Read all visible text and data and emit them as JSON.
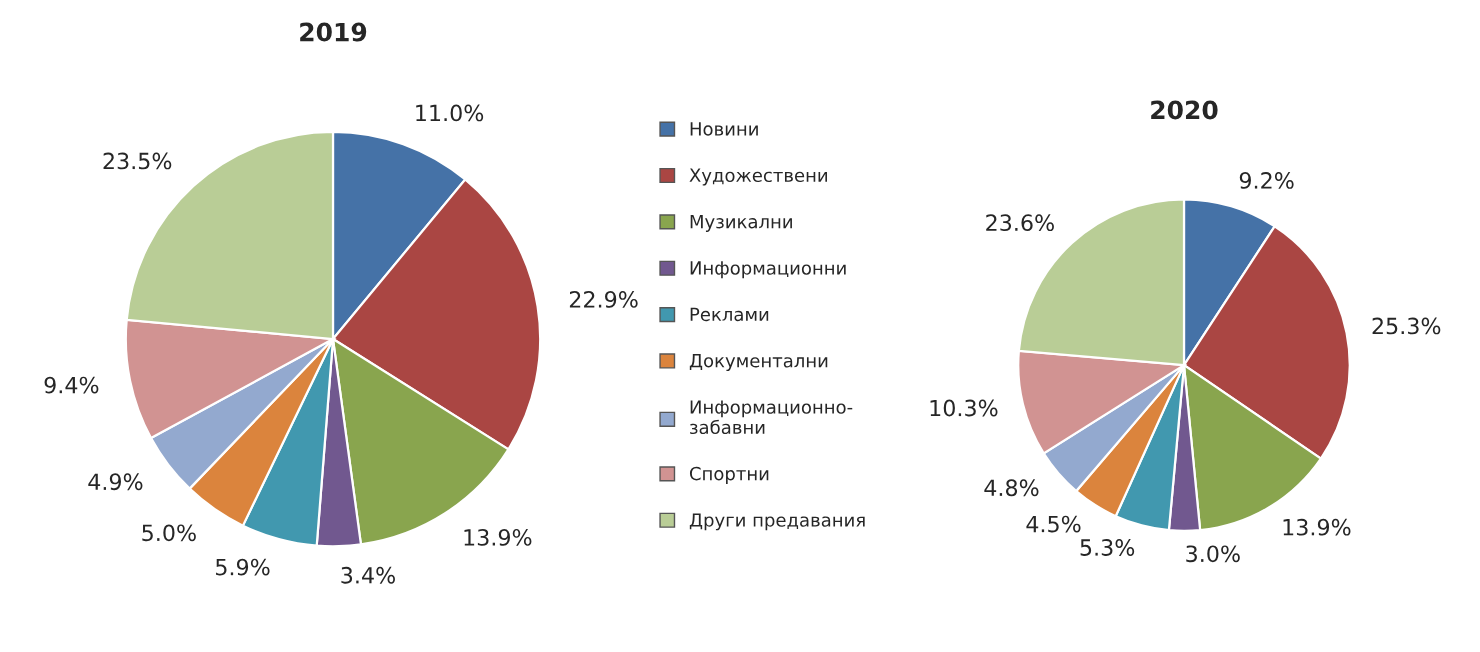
{
  "chart_data": [
    {
      "type": "pie",
      "title": "2019",
      "legend": "right",
      "data_labels": true,
      "categories": [
        "Новини",
        "Художествени",
        "Музикални",
        "Информационни",
        "Реклами",
        "Документални",
        "Информационно-забавни",
        "Спортни",
        "Други предавания"
      ],
      "values": [
        11.0,
        22.9,
        13.9,
        3.4,
        5.9,
        5.0,
        4.9,
        9.4,
        23.5
      ],
      "value_labels": [
        "11.0%",
        "22.9%",
        "13.9%",
        "3.4%",
        "5.9%",
        "5.0%",
        "4.9%",
        "9.4%",
        "23.5%"
      ],
      "colors": [
        "#4572a7",
        "#aa4643",
        "#89a54e",
        "#71588f",
        "#4198af",
        "#db843d",
        "#93a9cf",
        "#d19392",
        "#b9cd96"
      ]
    },
    {
      "type": "pie",
      "title": "2020",
      "data_labels": true,
      "categories": [
        null,
        null,
        null,
        null,
        null,
        null,
        null,
        null,
        null
      ],
      "values": [
        9.2,
        25.3,
        13.9,
        3.0,
        5.3,
        4.5,
        4.8,
        10.3,
        23.6
      ],
      "value_labels": [
        "9.2%",
        "25.3%",
        "13.9%",
        "3.0%",
        "5.3%",
        "4.5%",
        "4.8%",
        "10.3%",
        "23.6%"
      ],
      "colors": [
        "#4572a7",
        "#aa4643",
        "#89a54e",
        "#71588f",
        "#4198af",
        "#db843d",
        "#93a9cf",
        "#d19392",
        "#b9cd96"
      ]
    }
  ]
}
